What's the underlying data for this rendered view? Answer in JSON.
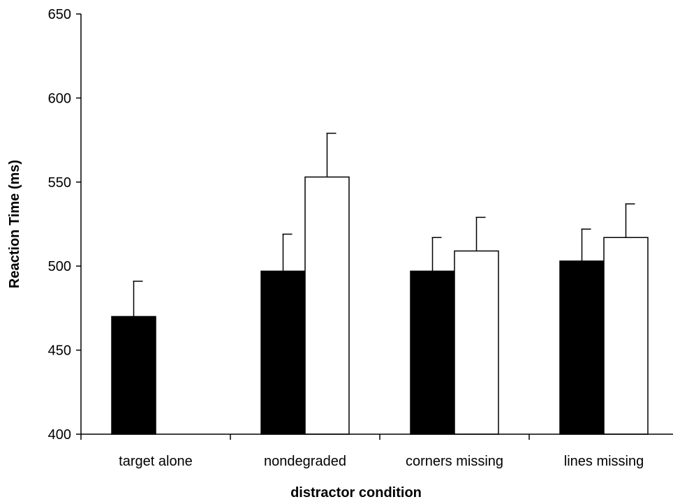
{
  "chart_data": {
    "type": "bar",
    "title": "",
    "xlabel": "distractor condition",
    "ylabel": "Reaction Time (ms)",
    "ylim": [
      400,
      650
    ],
    "yticks": [
      400,
      450,
      500,
      550,
      600,
      650
    ],
    "categories": [
      "target alone",
      "nondegraded",
      "corners missing",
      "lines missing"
    ],
    "series": [
      {
        "fill": "#000000",
        "values": [
          470,
          497,
          497,
          503
        ],
        "errors": [
          21,
          22,
          20,
          19
        ]
      },
      {
        "fill": "#ffffff",
        "values": [
          null,
          553,
          509,
          517
        ],
        "errors": [
          null,
          26,
          20,
          20
        ]
      }
    ],
    "grid": false,
    "legend": "none"
  }
}
